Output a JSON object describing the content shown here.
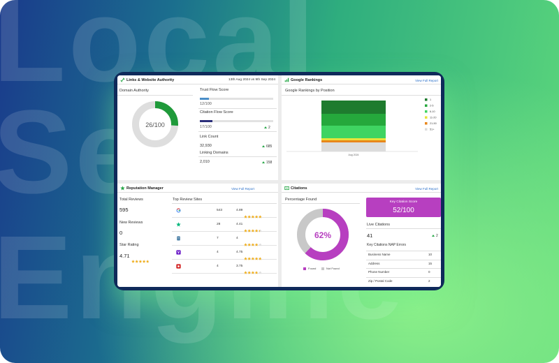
{
  "background": {
    "words": [
      "Local",
      "Search",
      "Engine"
    ]
  },
  "links_panel": {
    "title": "Links & Website Authority",
    "date_range": "13th Aug 2024 vs 9th Sep 2024",
    "domain_authority": {
      "label": "Domain Authority",
      "value": 26,
      "max": 100,
      "text": "26/100",
      "color": "#1f9a3a"
    },
    "trust_flow": {
      "label": "Trust Flow Score",
      "value": 12,
      "max": 100,
      "text": "12/100",
      "color": "#4a8ec8"
    },
    "citation_flow": {
      "label": "Citation Flow Score",
      "value": 17,
      "max": 100,
      "text": "17/100",
      "change": "2",
      "color": "#2b2f7a"
    },
    "link_count": {
      "label": "Link Count",
      "value": "32,930",
      "change": "685"
    },
    "linking_domains": {
      "label": "Linking Domains",
      "value": "2,010",
      "change": "158"
    }
  },
  "rankings_panel": {
    "title": "Google Rankings",
    "link": "View Full Report",
    "chart": {
      "type": "bar",
      "stacked": true,
      "title": "Google Rankings by Position",
      "categories": [
        "Aug 2024"
      ],
      "series": [
        {
          "name": "1",
          "color": "#1e7b2e",
          "values": [
            19
          ]
        },
        {
          "name": "2-5",
          "color": "#25a83c",
          "values": [
            17
          ]
        },
        {
          "name": "6-10",
          "color": "#3fd462",
          "values": [
            18
          ]
        },
        {
          "name": "11-20",
          "color": "#e8e23a",
          "values": [
            3
          ]
        },
        {
          "name": "21-50",
          "color": "#e8861a",
          "values": [
            3
          ]
        },
        {
          "name": "51+",
          "color": "#dcdcdc",
          "values": [
            13
          ]
        }
      ]
    }
  },
  "reputation_panel": {
    "title": "Reputation Manager",
    "link": "View Full Report",
    "total_reviews": {
      "label": "Total Reviews",
      "value": 595
    },
    "new_reviews": {
      "label": "New Reviews",
      "value": 0
    },
    "star_rating": {
      "label": "Star Rating",
      "value": 4.71
    },
    "sites": {
      "title": "Top Review Sites",
      "rows": [
        {
          "reviews": 543,
          "rating": 4.89
        },
        {
          "reviews": 28,
          "rating": 4.41
        },
        {
          "reviews": 7,
          "rating": 4
        },
        {
          "reviews": 4,
          "rating": 4.75
        },
        {
          "reviews": 4,
          "rating": 3.75
        }
      ]
    }
  },
  "citations_panel": {
    "title": "Citations",
    "link": "View Full Report",
    "percentage_found": {
      "label": "Percentage Found",
      "value": 62,
      "text": "62%",
      "found": {
        "name": "Found",
        "color": "#b73fc0"
      },
      "not_found": {
        "name": "Not Found",
        "color": "#c8c8c8"
      }
    },
    "key_score": {
      "label": "Key Citation Score",
      "value": 52,
      "text": "52/100"
    },
    "live_citations": {
      "label": "Live Citations",
      "value": 41,
      "change": "2"
    },
    "nap_errors": {
      "title": "Key Citations NAP Errors",
      "rows": [
        {
          "name": "Business Name",
          "value": 10
        },
        {
          "name": "Address",
          "value": 15
        },
        {
          "name": "Phone Number",
          "value": 0
        },
        {
          "name": "Zip / Postal Code",
          "value": 2
        }
      ]
    }
  }
}
